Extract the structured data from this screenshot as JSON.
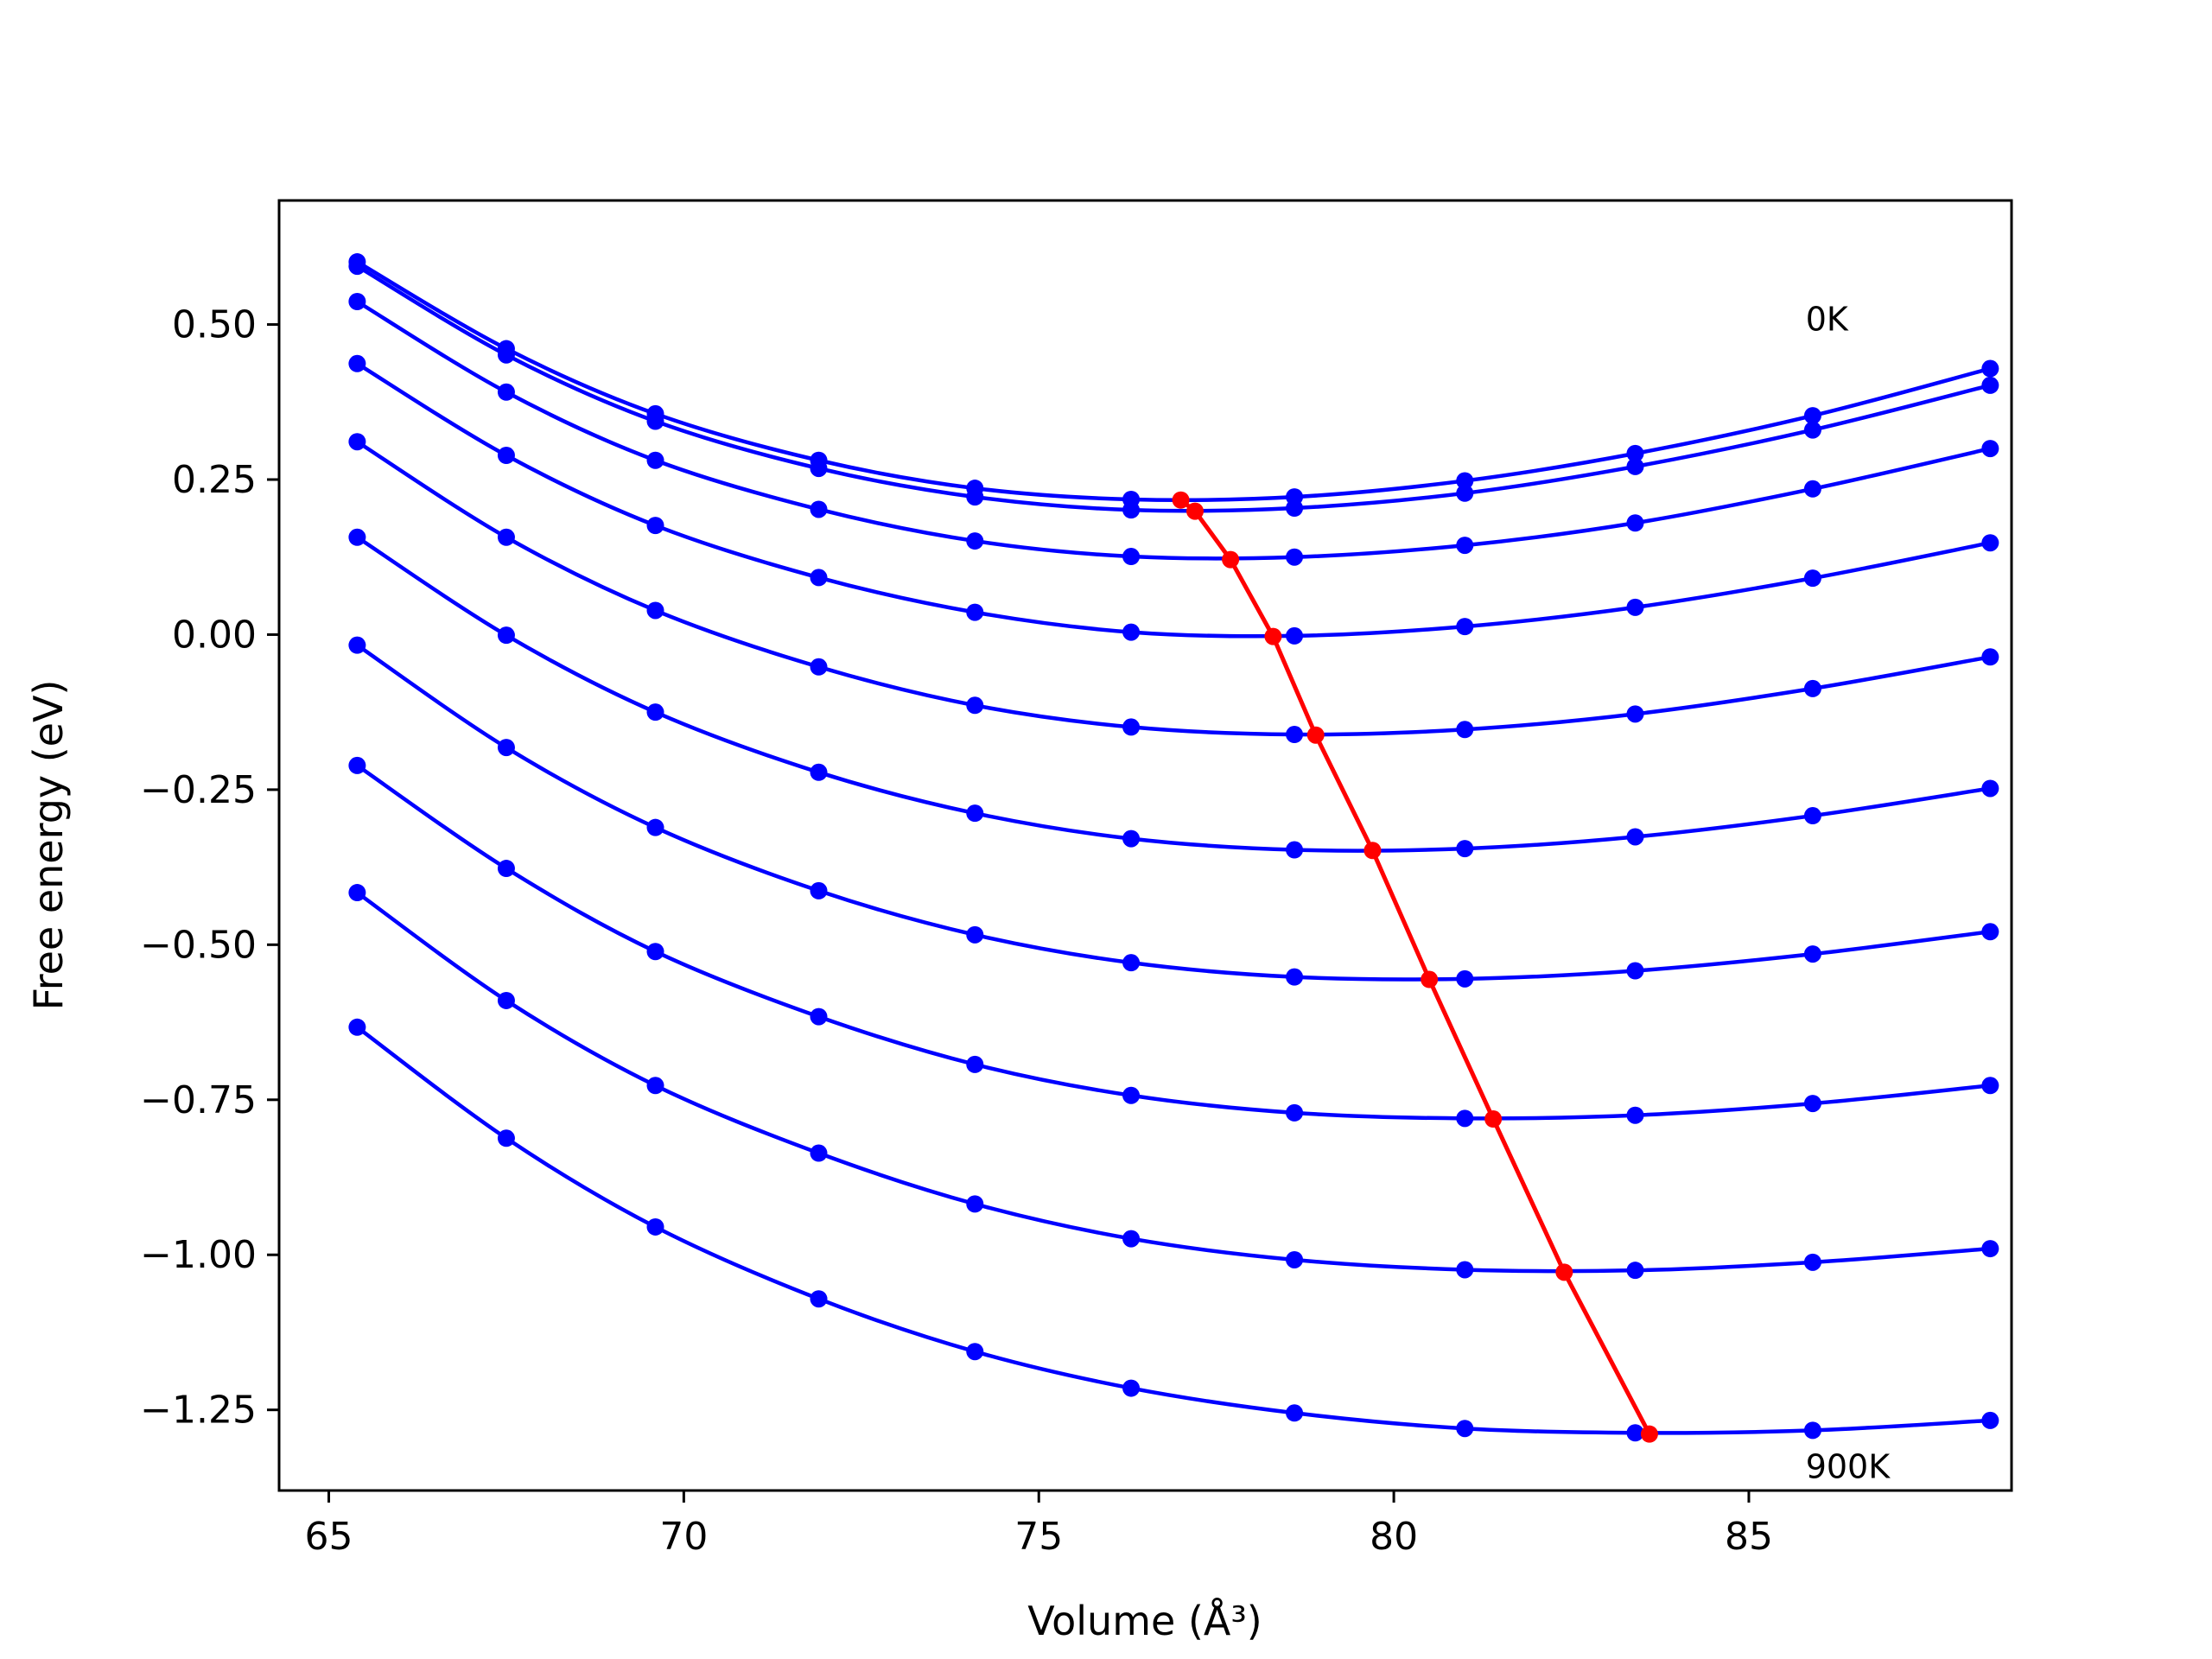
{
  "chart_data": {
    "type": "line",
    "title": "",
    "xlabel": "Volume (Å³)",
    "ylabel": "Free energy (eV)",
    "xlim": [
      64.3,
      88.7
    ],
    "ylim": [
      -1.38,
      0.7
    ],
    "grid": false,
    "x_ticks": [
      {
        "value": 65,
        "label": "65"
      },
      {
        "value": 70,
        "label": "70"
      },
      {
        "value": 75,
        "label": "75"
      },
      {
        "value": 80,
        "label": "80"
      },
      {
        "value": 85,
        "label": "85"
      }
    ],
    "y_ticks": [
      {
        "value": 0.5,
        "label": "0.50"
      },
      {
        "value": 0.25,
        "label": "0.25"
      },
      {
        "value": 0.0,
        "label": "0.00"
      },
      {
        "value": -0.25,
        "label": "−0.25"
      },
      {
        "value": -0.5,
        "label": "−0.50"
      },
      {
        "value": -0.75,
        "label": "−0.75"
      },
      {
        "value": -1.0,
        "label": "−1.00"
      },
      {
        "value": -1.25,
        "label": "−1.25"
      }
    ],
    "annotations": [
      {
        "text": "0K",
        "x": 85.8,
        "y": 0.49
      },
      {
        "text": "900K",
        "x": 85.8,
        "y": -1.36
      }
    ],
    "curve_color": "#0000ff",
    "minimum_color": "#ff0000",
    "x": [
      65.4,
      67.5,
      69.6,
      71.9,
      74.1,
      76.3,
      78.6,
      81.0,
      83.4,
      85.9,
      88.4
    ],
    "series": [
      {
        "values": [
          0.601,
          0.461,
          0.356,
          0.281,
          0.236,
          0.218,
          0.222,
          0.248,
          0.292,
          0.353,
          0.429
        ]
      },
      {
        "values": [
          0.594,
          0.451,
          0.344,
          0.268,
          0.222,
          0.201,
          0.204,
          0.228,
          0.271,
          0.33,
          0.402
        ]
      },
      {
        "values": [
          0.537,
          0.391,
          0.281,
          0.202,
          0.151,
          0.126,
          0.125,
          0.144,
          0.18,
          0.235,
          0.3
        ]
      },
      {
        "values": [
          0.437,
          0.289,
          0.176,
          0.092,
          0.036,
          0.004,
          -0.002,
          0.013,
          0.044,
          0.091,
          0.148
        ]
      },
      {
        "values": [
          0.311,
          0.157,
          0.039,
          -0.052,
          -0.114,
          -0.149,
          -0.161,
          -0.153,
          -0.128,
          -0.087,
          -0.036
        ]
      },
      {
        "values": [
          0.157,
          -0.001,
          -0.125,
          -0.222,
          -0.288,
          -0.329,
          -0.347,
          -0.345,
          -0.326,
          -0.292,
          -0.248
        ]
      },
      {
        "values": [
          -0.017,
          -0.182,
          -0.311,
          -0.413,
          -0.484,
          -0.529,
          -0.552,
          -0.555,
          -0.542,
          -0.515,
          -0.479
        ]
      },
      {
        "values": [
          -0.211,
          -0.377,
          -0.511,
          -0.616,
          -0.693,
          -0.743,
          -0.771,
          -0.78,
          -0.775,
          -0.756,
          -0.727
        ]
      },
      {
        "values": [
          -0.416,
          -0.59,
          -0.727,
          -0.836,
          -0.918,
          -0.974,
          -1.008,
          -1.024,
          -1.025,
          -1.012,
          -0.99
        ]
      },
      {
        "values": [
          -0.633,
          -0.812,
          -0.955,
          -1.071,
          -1.156,
          -1.215,
          -1.255,
          -1.28,
          -1.287,
          -1.283,
          -1.267
        ]
      }
    ],
    "minima": {
      "x": [
        77.0,
        77.2,
        77.7,
        78.3,
        78.9,
        79.7,
        80.5,
        81.4,
        82.4,
        83.6
      ],
      "y": [
        0.217,
        0.199,
        0.121,
        -0.003,
        -0.162,
        -0.348,
        -0.556,
        -0.781,
        -1.028,
        -1.289
      ]
    }
  }
}
